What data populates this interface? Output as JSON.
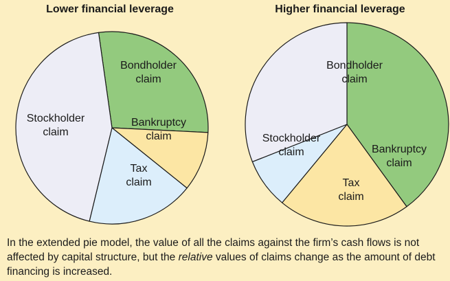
{
  "chart_data": [
    {
      "type": "pie",
      "title": "Lower financial leverage",
      "slices": [
        {
          "label": [
            "Bondholder",
            "claim"
          ],
          "value": 28,
          "color": "#93CA7E"
        },
        {
          "label": [
            "Bankruptcy",
            "claim"
          ],
          "value": 10,
          "color": "#FCE6A4"
        },
        {
          "label": [
            "Tax",
            "claim"
          ],
          "value": 18,
          "color": "#DCEEFB"
        },
        {
          "label": [
            "Stockholder",
            "claim"
          ],
          "value": 44,
          "color": "#EDEDF6"
        }
      ]
    },
    {
      "type": "pie",
      "title": "Higher financial leverage",
      "slices": [
        {
          "label": [
            "Bondholder",
            "claim"
          ],
          "value": 40,
          "color": "#93CA7E"
        },
        {
          "label": [
            "Bankruptcy",
            "claim"
          ],
          "value": 21,
          "color": "#FCE6A4"
        },
        {
          "label": [
            "Tax",
            "claim"
          ],
          "value": 8,
          "color": "#DCEEFB"
        },
        {
          "label": [
            "Stockholder",
            "claim"
          ],
          "value": 31,
          "color": "#EDEDF6"
        }
      ]
    }
  ],
  "caption": {
    "part1": "In the extended pie model, the value of all the claims against the firm’s cash flows is not affected by capital structure, but the ",
    "emphasis": "relative",
    "part2": " values of claims change as the amount of debt financing is increased."
  }
}
